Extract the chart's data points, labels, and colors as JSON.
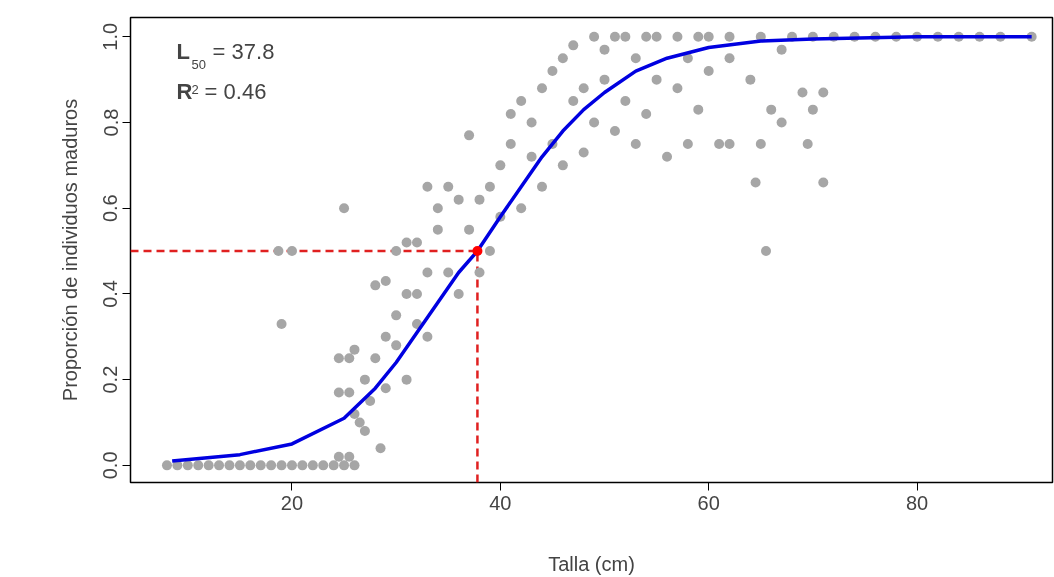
{
  "chart_data": {
    "type": "scatter",
    "xlabel": "Talla (cm)",
    "ylabel": "Proporción de individuos maduros",
    "xlim": [
      4.5,
      93
    ],
    "ylim": [
      -0.04,
      1.045
    ],
    "xticks": [
      20,
      40,
      60,
      80
    ],
    "yticks": [
      {
        "value": 0,
        "label": "0.0"
      },
      {
        "value": 0.2,
        "label": "0.2"
      },
      {
        "value": 0.4,
        "label": "0.4"
      },
      {
        "value": 0.6,
        "label": "0.6"
      },
      {
        "value": 0.8,
        "label": "0.8"
      },
      {
        "value": 1,
        "label": "1.0"
      }
    ],
    "grid": false,
    "marker": "circle",
    "annotations": [
      "L$_{50}$ = 37.8",
      "R$^{2}$ = 0.46"
    ],
    "ref_lines": [
      {
        "axis": "x",
        "value": 37.8,
        "color": "#e02020",
        "line_style": "dashed"
      },
      {
        "axis": "y",
        "value": 0.5,
        "color": "#e02020",
        "line_style": "dashed"
      }
    ],
    "series": [
      {
        "color": "#a6a6a6",
        "x": [
          8,
          9,
          10,
          11,
          12,
          13,
          14,
          15,
          16,
          17,
          18,
          19,
          20,
          21,
          22,
          23,
          24,
          25,
          26,
          24.5,
          25.5,
          18.7,
          20,
          19,
          25,
          24.5,
          25.5,
          24.5,
          25.5,
          26.5,
          27,
          28.5,
          27.5,
          26,
          27,
          28,
          29,
          30,
          31,
          30,
          31,
          32,
          32,
          33,
          34,
          34,
          35,
          36,
          35,
          36,
          37,
          37,
          38,
          38,
          39,
          39,
          40,
          40,
          41,
          41,
          42,
          42,
          43,
          43,
          44,
          44,
          45,
          45,
          46,
          46,
          47,
          47,
          48,
          48,
          49,
          49,
          50,
          50,
          51,
          51,
          52,
          53,
          53,
          54,
          55,
          55,
          56,
          57,
          58,
          58,
          59,
          60,
          60,
          61,
          62,
          62,
          64,
          64.5,
          65,
          65.5,
          66,
          67,
          67,
          69,
          69.5,
          70,
          71,
          71,
          52,
          54,
          57,
          59,
          62,
          65,
          68,
          70,
          72,
          74,
          76,
          78,
          80,
          82,
          84,
          86,
          88,
          91,
          29,
          30,
          31,
          33,
          33,
          32,
          28,
          29,
          26
        ],
        "values": [
          0,
          0,
          0,
          0,
          0,
          0,
          0,
          0,
          0,
          0,
          0,
          0,
          0,
          0,
          0,
          0,
          0,
          0,
          0,
          0.02,
          0.02,
          0.5,
          0.5,
          0.33,
          0.6,
          0.17,
          0.17,
          0.25,
          0.25,
          0.1,
          0.08,
          0.04,
          0.15,
          0.27,
          0.2,
          0.42,
          0.43,
          0.5,
          0.52,
          0.35,
          0.4,
          0.33,
          0.52,
          0.45,
          0.55,
          0.6,
          0.65,
          0.62,
          0.45,
          0.4,
          0.77,
          0.55,
          0.45,
          0.62,
          0.65,
          0.5,
          0.7,
          0.58,
          0.75,
          0.82,
          0.85,
          0.6,
          0.72,
          0.8,
          0.88,
          0.65,
          0.75,
          0.92,
          0.95,
          0.7,
          0.85,
          0.98,
          0.88,
          0.73,
          1,
          0.8,
          0.9,
          0.97,
          1,
          0.78,
          0.85,
          0.95,
          0.75,
          0.82,
          1,
          0.9,
          0.72,
          0.88,
          0.95,
          0.75,
          0.83,
          1,
          0.92,
          0.75,
          0.75,
          0.95,
          0.9,
          0.66,
          0.75,
          0.5,
          0.83,
          0.8,
          0.97,
          0.87,
          0.75,
          0.83,
          0.66,
          0.87,
          1,
          1,
          1,
          1,
          1,
          1,
          1,
          1,
          1,
          1,
          1,
          1,
          1,
          1,
          1,
          1,
          1,
          1,
          0.3,
          0.28,
          0.2,
          0.3,
          0.65,
          0.4,
          0.25,
          0.18,
          0.12
        ]
      },
      {
        "type": "line",
        "color": "#0000e0",
        "marker": "none",
        "x": [
          8.5,
          15,
          20,
          25,
          28,
          30,
          32,
          34,
          36,
          37.8,
          40,
          42,
          44,
          46,
          48,
          50,
          53,
          56,
          60,
          65,
          70,
          80,
          91
        ],
        "values": [
          0.01,
          0.025,
          0.05,
          0.11,
          0.18,
          0.24,
          0.31,
          0.38,
          0.45,
          0.5,
          0.58,
          0.65,
          0.72,
          0.78,
          0.83,
          0.87,
          0.92,
          0.95,
          0.975,
          0.99,
          0.995,
          1,
          1
        ]
      },
      {
        "color": "#ff0000",
        "x": [
          37.8
        ],
        "values": [
          0.5
        ]
      }
    ]
  }
}
